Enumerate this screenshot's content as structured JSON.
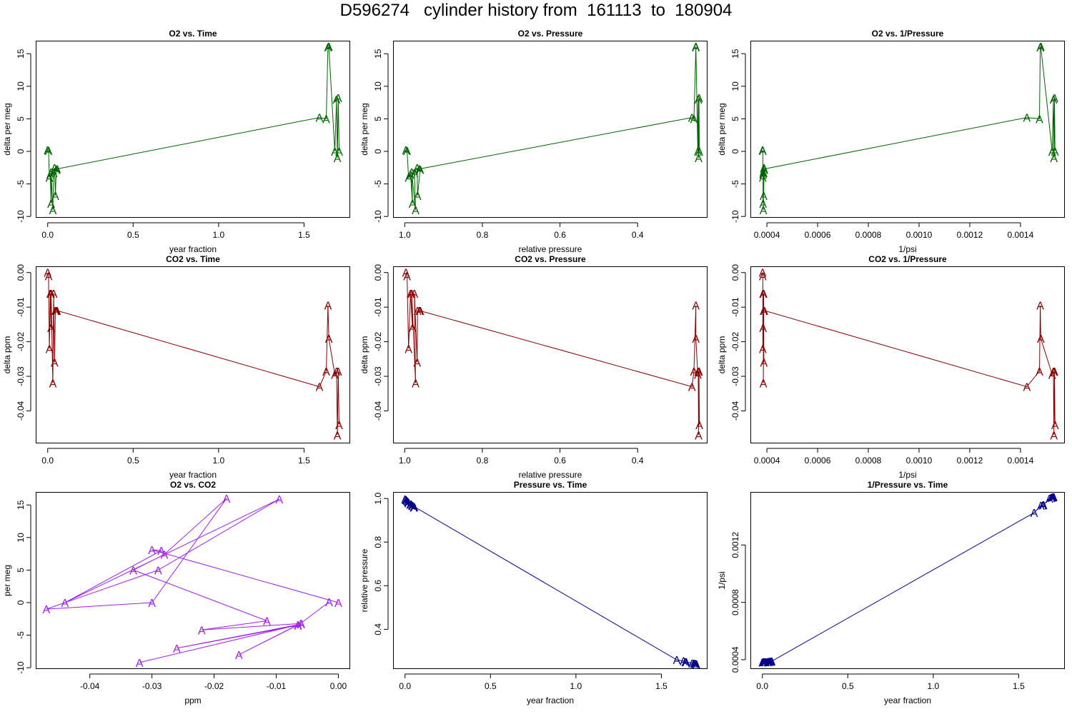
{
  "title": "D596274   cylinder history from  161113  to  180904",
  "colors": {
    "o2": "#006400",
    "co2": "#8b0000",
    "o2co2": "#a020f0",
    "pressure": "#00008b"
  },
  "point_marker": "A",
  "chart_data": [
    {
      "type": "line",
      "title": "O2 vs. Time",
      "xlabel": "year fraction",
      "ylabel": "delta per meg",
      "color": "o2",
      "xlim": [
        -0.07,
        1.77
      ],
      "ylim": [
        -10.2,
        17
      ],
      "xticks": [
        0,
        0.5,
        1,
        1.5
      ],
      "xticklabels": [
        "0.0",
        "0.5",
        "1.0",
        "1.5"
      ],
      "yticks": [
        -10,
        -5,
        0,
        5,
        10,
        15
      ],
      "yticklabels": [
        "-10",
        "-5",
        "0",
        "5",
        "10",
        "15"
      ],
      "x": [
        0.0,
        0.005,
        0.01,
        0.015,
        0.02,
        0.02,
        0.03,
        0.035,
        0.04,
        0.045,
        0.05,
        0.055,
        1.59,
        1.63,
        1.64,
        1.645,
        1.68,
        1.69,
        1.695,
        1.7,
        1.705
      ],
      "y": [
        0.2,
        0.1,
        -4.0,
        -3.5,
        -8.0,
        -3.2,
        -9.0,
        -3.3,
        -2.5,
        -6.8,
        -2.8,
        -2.7,
        5.2,
        5.0,
        16.0,
        16.1,
        0.0,
        8.0,
        -1.0,
        8.2,
        0.0
      ]
    },
    {
      "type": "line",
      "title": "O2 vs. Pressure",
      "xlabel": "relative pressure",
      "ylabel": "delta per meg",
      "color": "o2",
      "xlim": [
        1.03,
        0.22
      ],
      "ylim": [
        -10.2,
        17
      ],
      "xticks": [
        1.0,
        0.8,
        0.6,
        0.4
      ],
      "xticklabels": [
        "1.0",
        "0.8",
        "0.6",
        "0.4"
      ],
      "yticks": [
        -10,
        -5,
        0,
        5,
        10,
        15
      ],
      "yticklabels": [
        "-10",
        "-5",
        "0",
        "5",
        "10",
        "15"
      ],
      "x": [
        0.997,
        0.994,
        0.99,
        0.985,
        0.98,
        0.982,
        0.972,
        0.975,
        0.968,
        0.967,
        0.96,
        0.962,
        0.26,
        0.255,
        0.25,
        0.25,
        0.245,
        0.244,
        0.243,
        0.242,
        0.241
      ],
      "y": [
        0.2,
        0.1,
        -4.0,
        -3.5,
        -8.0,
        -3.2,
        -9.0,
        -3.3,
        -2.5,
        -6.8,
        -2.8,
        -2.7,
        5.2,
        5.0,
        16.0,
        16.1,
        0.0,
        8.0,
        -1.0,
        8.2,
        0.0
      ]
    },
    {
      "type": "line",
      "title": "O2 vs. 1/Pressure",
      "xlabel": "1/psi",
      "ylabel": "delta per meg",
      "color": "o2",
      "xlim": [
        0.000335,
        0.001575
      ],
      "ylim": [
        -10.2,
        17
      ],
      "xticks": [
        0.0004,
        0.0006,
        0.0008,
        0.001,
        0.0012,
        0.0014
      ],
      "xticklabels": [
        "0.0004",
        "0.0006",
        "0.0008",
        "0.0010",
        "0.0012",
        "0.0014"
      ],
      "yticks": [
        -10,
        -5,
        0,
        5,
        10,
        15
      ],
      "yticklabels": [
        "-10",
        "-5",
        "0",
        "5",
        "10",
        "15"
      ],
      "x": [
        0.000383,
        0.000384,
        0.000384,
        0.000385,
        0.000385,
        0.000386,
        0.000386,
        0.000387,
        0.000388,
        0.000387,
        0.000389,
        0.00039,
        0.001425,
        0.001475,
        0.001478,
        0.00148,
        0.001525,
        0.00153,
        0.001532,
        0.001534,
        0.001536
      ],
      "y": [
        0.2,
        0.1,
        -4.0,
        -3.5,
        -8.0,
        -3.2,
        -9.0,
        -3.3,
        -2.5,
        -6.8,
        -2.8,
        -2.7,
        5.2,
        5.0,
        16.0,
        16.1,
        0.0,
        8.0,
        -1.0,
        8.2,
        0.0
      ]
    },
    {
      "type": "line",
      "title": "CO2 vs. Time",
      "xlabel": "year fraction",
      "ylabel": "delta ppm",
      "color": "co2",
      "xlim": [
        -0.07,
        1.77
      ],
      "ylim": [
        -0.0494,
        0.0018
      ],
      "xticks": [
        0,
        0.5,
        1,
        1.5
      ],
      "xticklabels": [
        "0.0",
        "0.5",
        "1.0",
        "1.5"
      ],
      "yticks": [
        -0.04,
        -0.03,
        -0.02,
        -0.01,
        0.0
      ],
      "yticklabels": [
        "-0.04",
        "-0.03",
        "-0.02",
        "-0.01",
        "0.00"
      ],
      "x": [
        0.0,
        0.005,
        0.01,
        0.015,
        0.02,
        0.02,
        0.03,
        0.035,
        0.04,
        0.045,
        0.05,
        0.055,
        1.59,
        1.63,
        1.64,
        1.645,
        1.68,
        1.69,
        1.695,
        1.7,
        1.705
      ],
      "y": [
        0.0,
        -0.001,
        -0.022,
        -0.006,
        -0.016,
        -0.006,
        -0.032,
        -0.006,
        -0.026,
        -0.011,
        -0.011,
        -0.011,
        -0.033,
        -0.0285,
        -0.0095,
        -0.019,
        -0.0295,
        -0.0285,
        -0.047,
        -0.0285,
        -0.044
      ]
    },
    {
      "type": "line",
      "title": "CO2 vs. Pressure",
      "xlabel": "relative pressure",
      "ylabel": "delta ppm",
      "color": "co2",
      "xlim": [
        1.03,
        0.22
      ],
      "ylim": [
        -0.0494,
        0.0018
      ],
      "xticks": [
        1.0,
        0.8,
        0.6,
        0.4
      ],
      "xticklabels": [
        "1.0",
        "0.8",
        "0.6",
        "0.4"
      ],
      "yticks": [
        -0.04,
        -0.03,
        -0.02,
        -0.01,
        0.0
      ],
      "yticklabels": [
        "-0.04",
        "-0.03",
        "-0.02",
        "-0.01",
        "0.00"
      ],
      "x": [
        0.997,
        0.994,
        0.99,
        0.985,
        0.98,
        0.982,
        0.972,
        0.975,
        0.968,
        0.967,
        0.96,
        0.962,
        0.26,
        0.255,
        0.25,
        0.25,
        0.245,
        0.244,
        0.243,
        0.242,
        0.241
      ],
      "y": [
        0.0,
        -0.001,
        -0.022,
        -0.006,
        -0.016,
        -0.006,
        -0.032,
        -0.006,
        -0.026,
        -0.011,
        -0.011,
        -0.011,
        -0.033,
        -0.0285,
        -0.0095,
        -0.019,
        -0.0295,
        -0.0285,
        -0.047,
        -0.0285,
        -0.044
      ]
    },
    {
      "type": "line",
      "title": "CO2 vs. 1/Pressure",
      "xlabel": "1/psi",
      "ylabel": "delta ppm",
      "color": "co2",
      "xlim": [
        0.000335,
        0.001575
      ],
      "ylim": [
        -0.0494,
        0.0018
      ],
      "xticks": [
        0.0004,
        0.0006,
        0.0008,
        0.001,
        0.0012,
        0.0014
      ],
      "xticklabels": [
        "0.0004",
        "0.0006",
        "0.0008",
        "0.0010",
        "0.0012",
        "0.0014"
      ],
      "yticks": [
        -0.04,
        -0.03,
        -0.02,
        -0.01,
        0.0
      ],
      "yticklabels": [
        "-0.04",
        "-0.03",
        "-0.02",
        "-0.01",
        "0.00"
      ],
      "x": [
        0.000383,
        0.000384,
        0.000384,
        0.000385,
        0.000385,
        0.000386,
        0.000386,
        0.000387,
        0.000388,
        0.000387,
        0.000389,
        0.00039,
        0.001425,
        0.001475,
        0.001478,
        0.00148,
        0.001525,
        0.00153,
        0.001532,
        0.001534,
        0.001536
      ],
      "y": [
        0.0,
        -0.001,
        -0.022,
        -0.006,
        -0.016,
        -0.006,
        -0.032,
        -0.006,
        -0.026,
        -0.011,
        -0.011,
        -0.011,
        -0.033,
        -0.0285,
        -0.0095,
        -0.019,
        -0.0295,
        -0.0285,
        -0.047,
        -0.0285,
        -0.044
      ]
    },
    {
      "type": "line",
      "title": "O2 vs. CO2",
      "xlabel": "ppm",
      "ylabel": "per meg",
      "color": "o2co2",
      "xlim": [
        -0.0487,
        0.0019
      ],
      "ylim": [
        -10.2,
        17
      ],
      "xticks": [
        -0.04,
        -0.03,
        -0.02,
        -0.01,
        0.0
      ],
      "xticklabels": [
        "-0.04",
        "-0.03",
        "-0.02",
        "-0.01",
        "0.00"
      ],
      "yticks": [
        -10,
        -5,
        0,
        5,
        10,
        15
      ],
      "yticklabels": [
        "-10",
        "-5",
        "0",
        "5",
        "10",
        "15"
      ],
      "x": [
        -0.0015,
        -0.0065,
        -0.026,
        -0.006,
        -0.032,
        -0.0065,
        -0.016,
        -0.006,
        -0.022,
        -0.0115,
        -0.033,
        -0.028,
        -0.018,
        -0.03,
        -0.047,
        -0.029,
        -0.0095,
        -0.044,
        -0.0285,
        -0.03,
        0.0
      ],
      "y": [
        0.1,
        -3.5,
        -7.0,
        -3.3,
        -9.2,
        -3.4,
        -8.0,
        -3.2,
        -4.2,
        -2.8,
        5.0,
        7.4,
        16.0,
        0.0,
        -1.0,
        5.0,
        15.9,
        0.0,
        8.0,
        8.1,
        0.0
      ]
    },
    {
      "type": "line",
      "title": "Pressure vs. Time",
      "xlabel": "year fraction",
      "ylabel": "relative pressure",
      "color": "pressure",
      "xlim": [
        -0.07,
        1.77
      ],
      "ylim": [
        0.218,
        1.03
      ],
      "xticks": [
        0,
        0.5,
        1,
        1.5
      ],
      "xticklabels": [
        "0.0",
        "0.5",
        "1.0",
        "1.5"
      ],
      "yticks": [
        0.4,
        0.6,
        0.8,
        1.0
      ],
      "yticklabels": [
        "0.4",
        "0.6",
        "0.8",
        "1.0"
      ],
      "x": [
        0.0,
        0.005,
        0.01,
        0.015,
        0.02,
        0.02,
        0.03,
        0.035,
        0.04,
        0.045,
        0.05,
        0.055,
        1.59,
        1.63,
        1.64,
        1.645,
        1.68,
        1.69,
        1.695,
        1.7,
        1.705
      ],
      "y": [
        0.997,
        0.994,
        0.99,
        0.985,
        0.98,
        0.982,
        0.972,
        0.975,
        0.968,
        0.967,
        0.96,
        0.962,
        0.26,
        0.255,
        0.25,
        0.25,
        0.245,
        0.244,
        0.243,
        0.242,
        0.241
      ]
    },
    {
      "type": "line",
      "title": "1/Pressure vs. Time",
      "xlabel": "year fraction",
      "ylabel": "1/psi",
      "color": "pressure",
      "xlim": [
        -0.07,
        1.77
      ],
      "ylim": [
        0.000335,
        0.00157
      ],
      "xticks": [
        0,
        0.5,
        1,
        1.5
      ],
      "xticklabels": [
        "0.0",
        "0.5",
        "1.0",
        "1.5"
      ],
      "yticks": [
        0.0004,
        0.0008,
        0.0012
      ],
      "yticklabels": [
        "0.0004",
        "0.0008",
        "0.0012"
      ],
      "x": [
        0.0,
        0.005,
        0.01,
        0.015,
        0.02,
        0.02,
        0.03,
        0.035,
        0.04,
        0.045,
        0.05,
        0.055,
        1.59,
        1.63,
        1.64,
        1.645,
        1.68,
        1.69,
        1.695,
        1.7,
        1.705
      ],
      "y": [
        0.000383,
        0.000384,
        0.000384,
        0.000385,
        0.000385,
        0.000386,
        0.000386,
        0.000387,
        0.000388,
        0.000387,
        0.000389,
        0.00039,
        0.001425,
        0.001475,
        0.001478,
        0.00148,
        0.001525,
        0.00153,
        0.001532,
        0.001534,
        0.001536
      ]
    }
  ]
}
